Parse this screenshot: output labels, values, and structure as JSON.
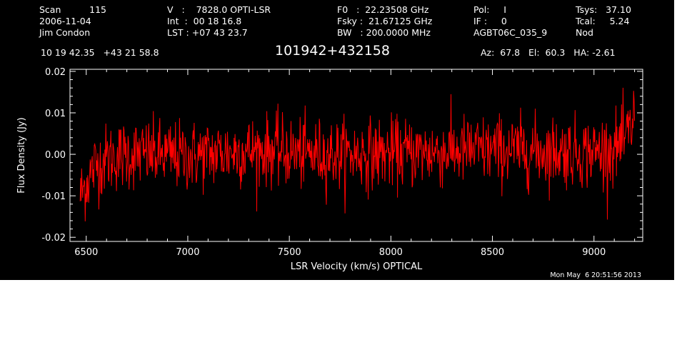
{
  "header": {
    "col1": [
      "Scan          115",
      "2006-11-04",
      "Jim Condon"
    ],
    "col2": [
      "V   :    7828.0 OPTI-LSR",
      "Int  :  00 18 16.8",
      "LST : +07 43 23.7"
    ],
    "col3": [
      "F0   :  22.23508 GHz",
      "Fsky :  21.67125 GHz",
      "BW   : 200.0000 MHz"
    ],
    "col4": [
      "Pol:     I",
      "IF :     0",
      "AGBT06C_035_9"
    ],
    "col5": [
      "Tsys:   37.10",
      "Tcal:     5.24",
      "Nod"
    ],
    "coords": "10 19 42.35   +43 21 58.8",
    "source_name": "101942+432158",
    "pointing": "Az:  67.8   El:  60.3   HA: -2.61"
  },
  "timestamp": "Mon May  6 20:51:56 2013",
  "chart_data": {
    "type": "line",
    "xlabel": "LSR Velocity (km/s) OPTICAL",
    "ylabel": "Flux Density (Jy)",
    "xlim": [
      6420,
      9240
    ],
    "ylim": [
      -0.021,
      0.0205
    ],
    "xticks": [
      6500,
      7000,
      7500,
      8000,
      8500,
      9000
    ],
    "xtick_labels": [
      "6500",
      "7000",
      "7500",
      "8000",
      "8500",
      "9000"
    ],
    "yticks": [
      -0.02,
      -0.01,
      0.0,
      0.01,
      0.02
    ],
    "ytick_labels": [
      "-0.02",
      "-0.01",
      "0.00",
      "0.01",
      "0.02"
    ],
    "line_color": "#ff0000",
    "axis_color": "#ffffff",
    "background": "#000000",
    "series": [
      {
        "x_start": 6470,
        "x_end": 9200,
        "profile": [
          [
            6470,
            -0.01
          ],
          [
            6490,
            -0.008
          ],
          [
            6510,
            -0.006
          ],
          [
            6540,
            -0.003
          ],
          [
            6600,
            -0.001
          ],
          [
            6700,
            0.0
          ],
          [
            6800,
            0.0
          ],
          [
            7000,
            -0.0005
          ],
          [
            7200,
            0.0005
          ],
          [
            7400,
            0.001
          ],
          [
            7600,
            0.0
          ],
          [
            7800,
            0.0
          ],
          [
            8000,
            0.0003
          ],
          [
            8200,
            0.0005
          ],
          [
            8400,
            0.001
          ],
          [
            8600,
            0.001
          ],
          [
            8800,
            0.0008
          ],
          [
            9000,
            0.0005
          ],
          [
            9100,
            0.0015
          ],
          [
            9150,
            0.003
          ],
          [
            9180,
            0.006
          ],
          [
            9200,
            0.01
          ]
        ],
        "noise_rms": 0.0042,
        "n_channels": 1100
      }
    ]
  }
}
